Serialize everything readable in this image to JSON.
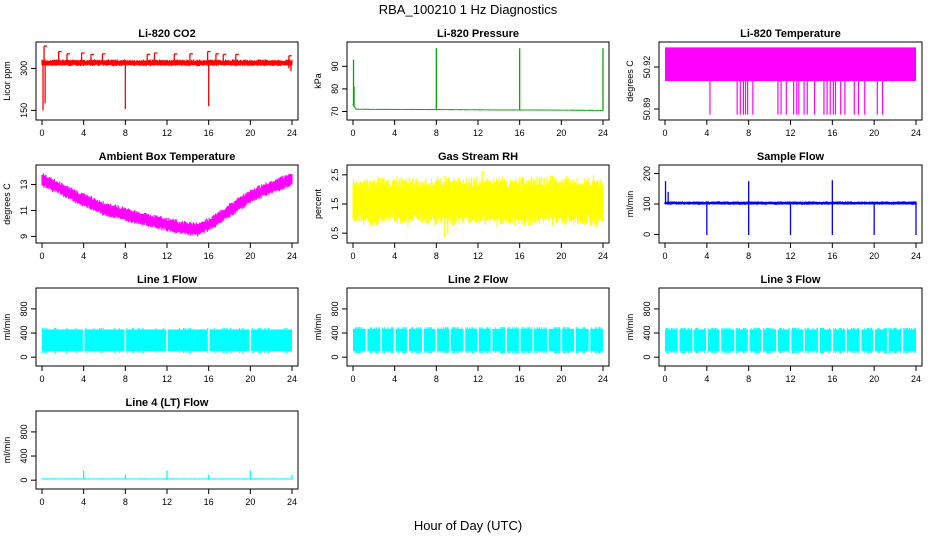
{
  "figure": {
    "title": "RBA_100210  1 Hz Diagnostics",
    "x_label": "Hour of Day (UTC)"
  },
  "chart_data": [
    {
      "type": "line",
      "title": "Li-820 CO2",
      "ylabel": "Licor ppm",
      "color": "#ff0000",
      "xlim": [
        0,
        24
      ],
      "xticks": [
        0,
        4,
        8,
        12,
        16,
        20,
        24
      ],
      "ylim": [
        130,
        380
      ],
      "yticks": [
        150,
        300
      ],
      "yticklabels": [
        "150",
        "300"
      ],
      "style": "noisy-band",
      "baseline": [
        [
          0,
          320
        ],
        [
          24,
          320
        ]
      ],
      "band": 14,
      "noise": 6,
      "spikes_up": [
        [
          0.2,
          380
        ],
        [
          1.6,
          360
        ],
        [
          2.4,
          352
        ],
        [
          3.8,
          355
        ],
        [
          4.7,
          350
        ],
        [
          5.8,
          352
        ],
        [
          10.1,
          350
        ],
        [
          10.8,
          355
        ],
        [
          12.7,
          352
        ],
        [
          14.2,
          352
        ],
        [
          15.9,
          360
        ],
        [
          16.7,
          352
        ],
        [
          17.4,
          350
        ],
        [
          18.6,
          350
        ],
        [
          23.7,
          345
        ]
      ],
      "spikes_down": [
        [
          0.1,
          150
        ],
        [
          0.3,
          175
        ],
        [
          8.0,
          155
        ],
        [
          16.0,
          165
        ],
        [
          23.7,
          300
        ],
        [
          23.9,
          290
        ]
      ]
    },
    {
      "type": "line",
      "title": "Li-820 Pressure",
      "ylabel": "kPa",
      "color": "#00aa00",
      "xlim": [
        0,
        24
      ],
      "xticks": [
        0,
        4,
        8,
        12,
        16,
        20,
        24
      ],
      "ylim": [
        68,
        99
      ],
      "yticks": [
        70,
        80,
        90
      ],
      "yticklabels": [
        "70",
        "80",
        "90"
      ],
      "style": "flat-spikes",
      "baseline": [
        [
          0,
          73
        ],
        [
          0.3,
          71
        ],
        [
          24,
          70.5
        ]
      ],
      "band": 0.3,
      "noise": 0.1,
      "spikes_up": [
        [
          0.05,
          93
        ],
        [
          0.1,
          81
        ],
        [
          8.0,
          98
        ],
        [
          16.0,
          98
        ],
        [
          24.0,
          98
        ]
      ],
      "spikes_down": []
    },
    {
      "type": "line",
      "title": "Li-820 Temperature",
      "ylabel": "degrees C",
      "color": "#ff00ff",
      "xlim": [
        0,
        24
      ],
      "xticks": [
        0,
        4,
        8,
        12,
        16,
        20,
        24
      ],
      "ylim": [
        50.885,
        50.935
      ],
      "yticks": [
        50.89,
        50.92
      ],
      "yticklabels": [
        "50.89",
        "50.92"
      ],
      "style": "digital",
      "high": 50.934,
      "low": 50.91,
      "floor": 50.886,
      "dropouts": [
        4.3,
        6.9,
        7.2,
        7.5,
        7.7,
        7.9,
        8.4,
        10.8,
        11.1,
        11.6,
        12.3,
        12.6,
        12.8,
        13.3,
        13.6,
        14.3,
        15.2,
        15.5,
        15.8,
        16.1,
        16.3,
        16.8,
        17.2,
        18.1,
        18.5,
        19.1,
        20.3,
        20.8
      ]
    },
    {
      "type": "line",
      "title": "Ambient Box Temperature",
      "ylabel": "degrees C",
      "color": "#ff00ff",
      "xlim": [
        0,
        24
      ],
      "xticks": [
        0,
        4,
        8,
        12,
        16,
        20,
        24
      ],
      "ylim": [
        8.8,
        14.2
      ],
      "yticks": [
        9,
        11,
        13
      ],
      "yticklabels": [
        "9",
        "11",
        "13"
      ],
      "style": "noisy-band",
      "baseline": [
        [
          0,
          13.4
        ],
        [
          2,
          12.6
        ],
        [
          4,
          11.8
        ],
        [
          6,
          11.1
        ],
        [
          8,
          10.7
        ],
        [
          10,
          10.3
        ],
        [
          12,
          9.9
        ],
        [
          14,
          9.6
        ],
        [
          15,
          9.55
        ],
        [
          16,
          9.9
        ],
        [
          18,
          11.0
        ],
        [
          20,
          12.1
        ],
        [
          22,
          12.8
        ],
        [
          24,
          13.4
        ]
      ],
      "band": 0.7,
      "noise": 0.25,
      "spikes_up": [],
      "spikes_down": []
    },
    {
      "type": "line",
      "title": "Gas Stream RH",
      "ylabel": "percent",
      "color": "#ffff00",
      "xlim": [
        0,
        24
      ],
      "xticks": [
        0,
        4,
        8,
        12,
        16,
        20,
        24
      ],
      "ylim": [
        0.3,
        2.7
      ],
      "yticks": [
        0.5,
        1.5,
        2.5
      ],
      "yticklabels": [
        "0.5",
        "1.5",
        "2.5"
      ],
      "style": "noisy-band",
      "baseline": [
        [
          0,
          1.6
        ],
        [
          24,
          1.6
        ]
      ],
      "band": 1.3,
      "noise": 0.25,
      "spikes_up": [
        [
          12.4,
          2.6
        ]
      ],
      "spikes_down": [
        [
          8.8,
          0.38
        ],
        [
          9.1,
          0.45
        ]
      ]
    },
    {
      "type": "line",
      "title": "Sample Flow",
      "ylabel": "ml/min",
      "color": "#0000ff",
      "xlim": [
        0,
        24
      ],
      "xticks": [
        0,
        4,
        8,
        12,
        16,
        20,
        24
      ],
      "ylim": [
        -15,
        215
      ],
      "yticks": [
        0,
        100,
        200
      ],
      "yticklabels": [
        "0",
        "100",
        "200"
      ],
      "style": "flat-spikes",
      "baseline": [
        [
          0,
          103
        ],
        [
          24,
          103
        ]
      ],
      "band": 8,
      "noise": 2,
      "spikes_up": [
        [
          0.05,
          175
        ],
        [
          0.3,
          140
        ],
        [
          8.0,
          175
        ],
        [
          16.0,
          178
        ]
      ],
      "spikes_down": [
        [
          4.0,
          -2
        ],
        [
          8.0,
          -2
        ],
        [
          12.0,
          -2
        ],
        [
          16.0,
          -2
        ],
        [
          20.0,
          -2
        ],
        [
          24.0,
          -2
        ]
      ]
    },
    {
      "type": "line",
      "title": "Line 1 Flow",
      "ylabel": "ml/min",
      "color": "#00ffff",
      "xlim": [
        0,
        24
      ],
      "xticks": [
        0,
        4,
        8,
        12,
        16,
        20,
        24
      ],
      "ylim": [
        -80,
        1080
      ],
      "yticks": [
        0,
        400,
        800
      ],
      "yticklabels": [
        "0",
        "400",
        "800"
      ],
      "style": "gapped-band",
      "band_low": 100,
      "band_high": 460,
      "gaps": [
        4,
        8,
        12,
        16,
        20
      ]
    },
    {
      "type": "line",
      "title": "Line 2 Flow",
      "ylabel": "ml/min",
      "color": "#00ffff",
      "xlim": [
        0,
        24
      ],
      "xticks": [
        0,
        4,
        8,
        12,
        16,
        20,
        24
      ],
      "ylim": [
        -80,
        1080
      ],
      "yticks": [
        0,
        400,
        800
      ],
      "yticklabels": [
        "0",
        "400",
        "800"
      ],
      "style": "gapped-band",
      "band_low": 100,
      "band_high": 470,
      "gaps": [
        1.3,
        2.7,
        4,
        5.3,
        6.7,
        8,
        9.3,
        10.7,
        12,
        13.3,
        14.7,
        16,
        17.3,
        18.7,
        20,
        21.3,
        22.7
      ]
    },
    {
      "type": "line",
      "title": "Line 3 Flow",
      "ylabel": "ml/min",
      "color": "#00ffff",
      "xlim": [
        0,
        24
      ],
      "xticks": [
        0,
        4,
        8,
        12,
        16,
        20,
        24
      ],
      "ylim": [
        -80,
        1080
      ],
      "yticks": [
        0,
        400,
        800
      ],
      "yticklabels": [
        "0",
        "400",
        "800"
      ],
      "style": "gapped-band",
      "band_low": 100,
      "band_high": 460,
      "gaps": [
        1.3,
        2.7,
        4,
        5.3,
        6.7,
        8,
        9.3,
        10.7,
        12,
        13.3,
        14.7,
        16,
        17.3,
        18.7,
        20,
        21.3,
        22.7
      ]
    },
    {
      "type": "line",
      "title": "Line 4 (LT) Flow",
      "ylabel": "ml/min",
      "color": "#00ffff",
      "xlim": [
        0,
        24
      ],
      "xticks": [
        0,
        4,
        8,
        12,
        16,
        20,
        24
      ],
      "ylim": [
        -80,
        1080
      ],
      "yticks": [
        0,
        400,
        800
      ],
      "yticklabels": [
        "0",
        "400",
        "800"
      ],
      "style": "flat-spikes",
      "baseline": [
        [
          0,
          20
        ],
        [
          24,
          20
        ]
      ],
      "band": 15,
      "noise": 4,
      "spikes_up": [
        [
          4.0,
          160
        ],
        [
          8.0,
          90
        ],
        [
          12.0,
          160
        ],
        [
          16.0,
          90
        ],
        [
          20.0,
          160
        ],
        [
          24.0,
          90
        ]
      ],
      "spikes_down": []
    }
  ]
}
